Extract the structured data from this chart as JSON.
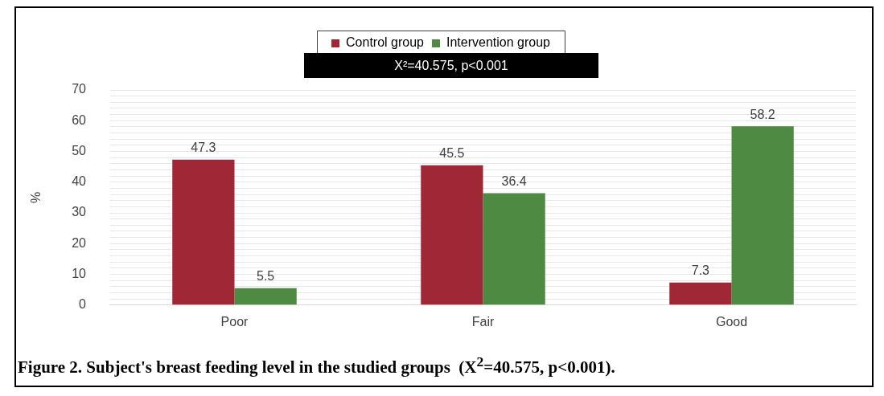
{
  "chart_data": {
    "type": "bar",
    "title": "Figure 2. Subject's breast feeding level in the studied groups  (X$^{2}$=40.575, p<0.001).",
    "ylabel": "%",
    "annotations": [
      "X²=40.575, p<0.001"
    ],
    "categories": [
      "Poor",
      "Fair",
      "Good"
    ],
    "series": [
      {
        "name": "Control group",
        "color": "#a02736",
        "values": [
          47.3,
          45.5,
          7.3
        ]
      },
      {
        "name": "Intervention group",
        "color": "#4e8a42",
        "values": [
          5.5,
          36.4,
          58.2
        ]
      }
    ],
    "ylim": [
      0,
      70
    ],
    "yticks": [
      0,
      {
        "value": 2,
        "label": null
      },
      {
        "value": 4,
        "label": null
      },
      {
        "value": 6,
        "label": null
      },
      {
        "value": 8,
        "label": null
      },
      10,
      {
        "value": 12,
        "label": null
      },
      {
        "value": 14,
        "label": null
      },
      {
        "value": 16,
        "label": null
      },
      {
        "value": 18,
        "label": null
      },
      20,
      {
        "value": 22,
        "label": null
      },
      {
        "value": 24,
        "label": null
      },
      {
        "value": 26,
        "label": null
      },
      {
        "value": 28,
        "label": null
      },
      30,
      {
        "value": 32,
        "label": null
      },
      {
        "value": 34,
        "label": null
      },
      {
        "value": 36,
        "label": null
      },
      {
        "value": 38,
        "label": null
      },
      40,
      {
        "value": 42,
        "label": null
      },
      {
        "value": 44,
        "label": null
      },
      {
        "value": 46,
        "label": null
      },
      {
        "value": 48,
        "label": null
      },
      50,
      {
        "value": 52,
        "label": null
      },
      {
        "value": 54,
        "label": null
      },
      {
        "value": 56,
        "label": null
      },
      {
        "value": 58,
        "label": null
      },
      60,
      {
        "value": 62,
        "label": null
      },
      {
        "value": 64,
        "label": null
      },
      {
        "value": 66,
        "label": null
      },
      {
        "value": 68,
        "label": null
      },
      70
    ],
    "grid": "y",
    "legend": "top",
    "data_labels": true
  }
}
